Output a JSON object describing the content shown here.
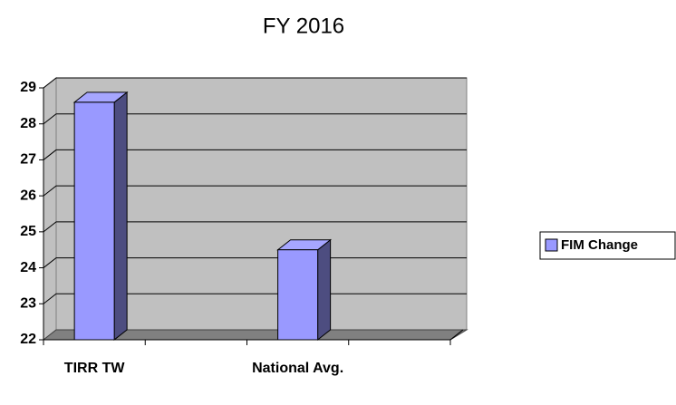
{
  "chart_data": {
    "type": "bar3d",
    "title": "FY 2016",
    "categories": [
      "TIRR TW",
      null,
      "National Avg.",
      null
    ],
    "series": [
      {
        "name": "FIM Change",
        "color": "#9999ff",
        "values": [
          28.6,
          null,
          24.5,
          null
        ]
      }
    ],
    "ylim": [
      22,
      29
    ],
    "yticks": [
      22,
      23,
      24,
      25,
      26,
      27,
      28,
      29
    ],
    "grid": true,
    "legend": "right"
  }
}
